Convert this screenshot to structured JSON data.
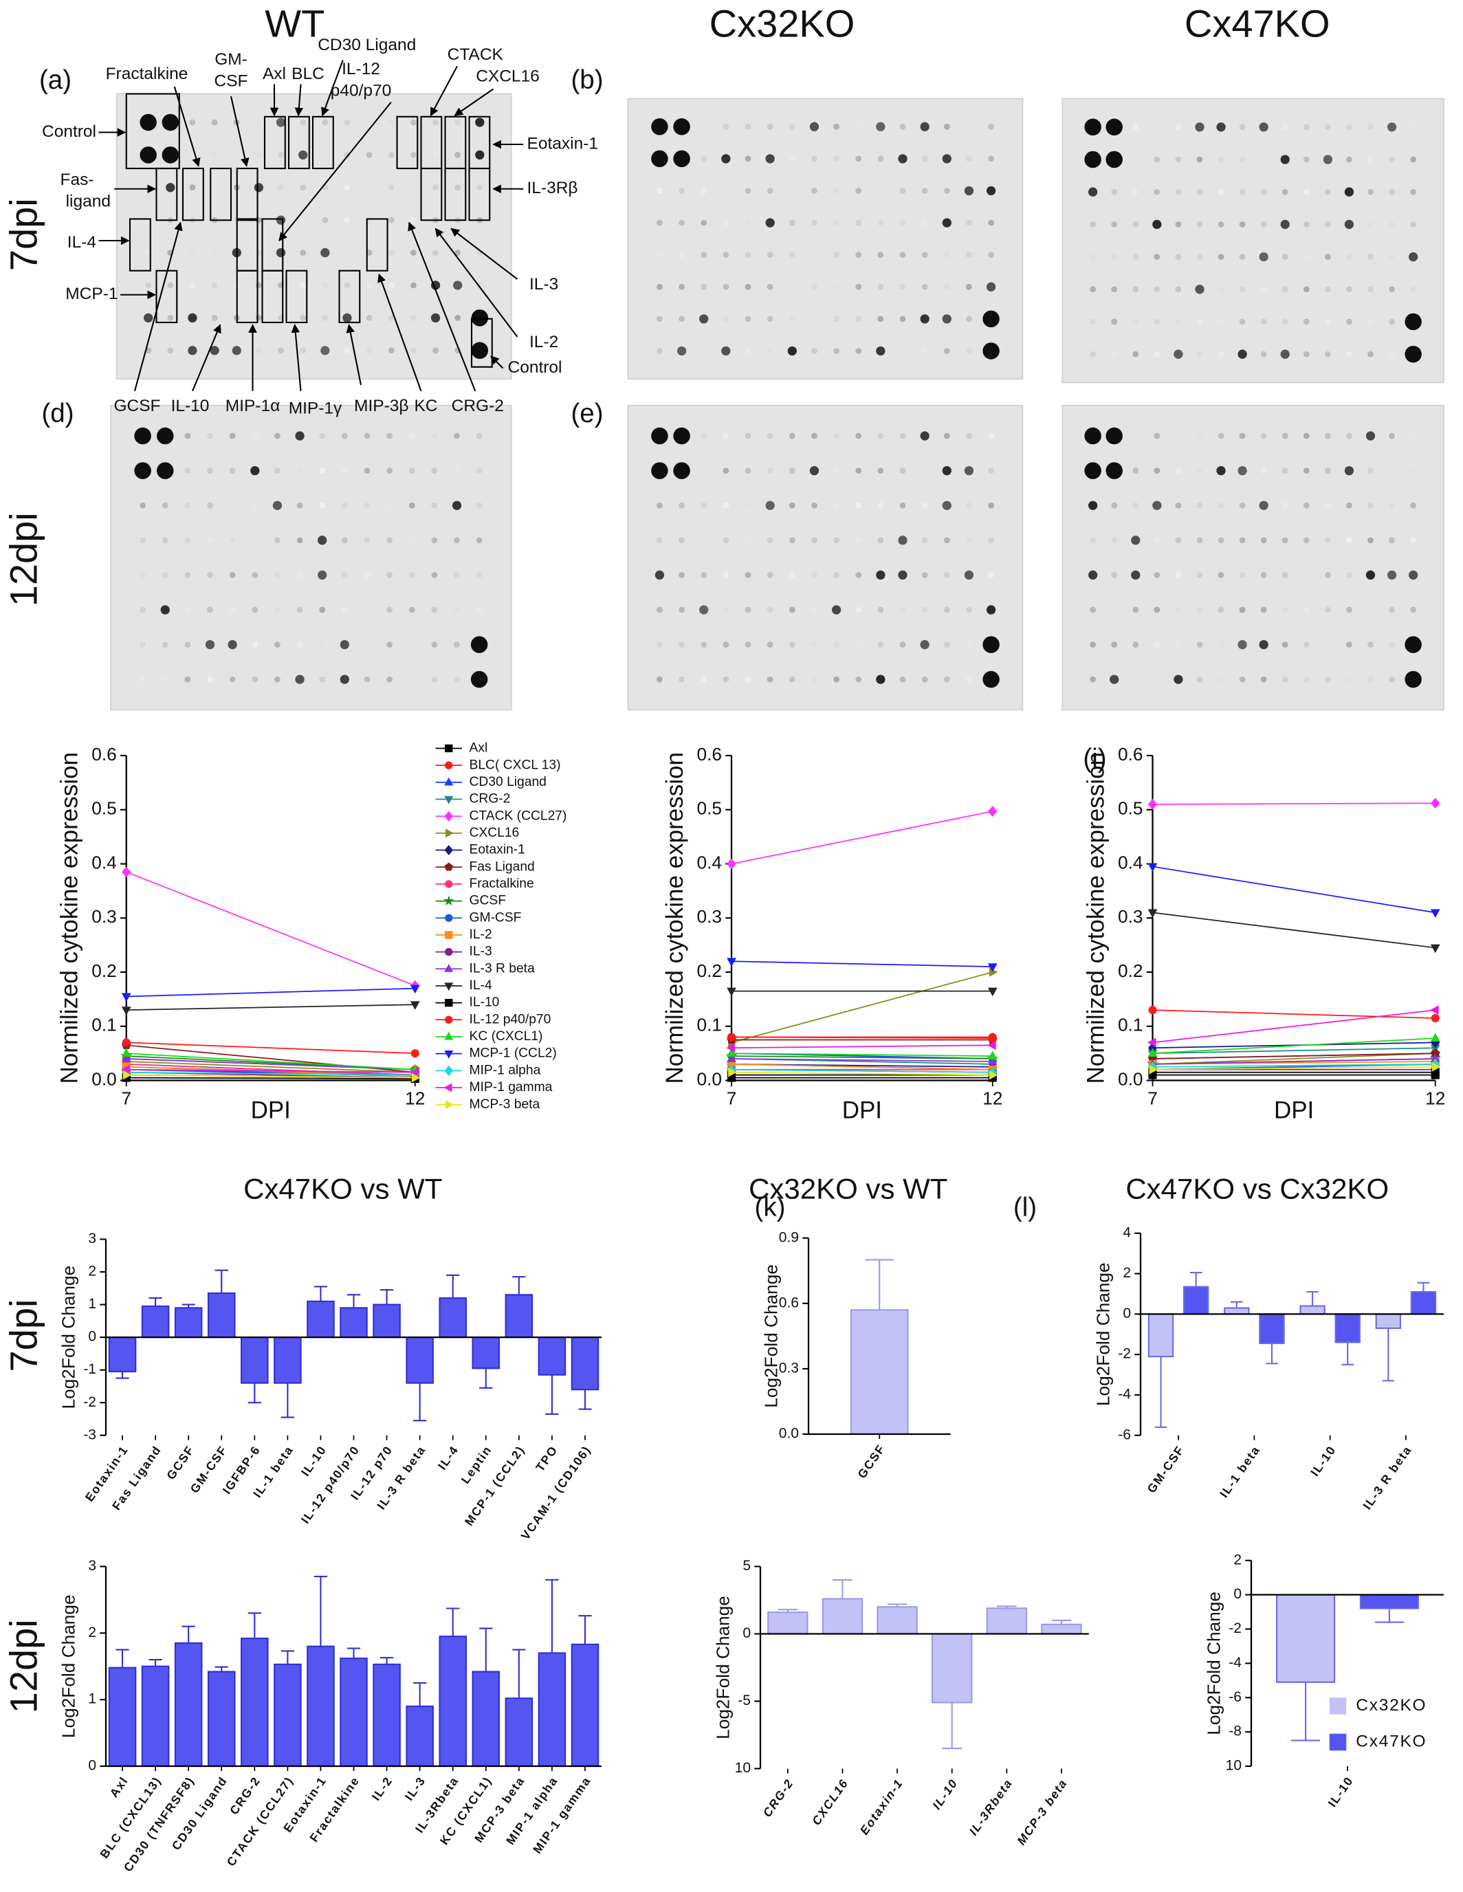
{
  "figure": {
    "column_titles": [
      "WT",
      "Cx32KO",
      "Cx47KO"
    ],
    "row_labels": [
      "7dpi",
      "12dpi"
    ],
    "panel_labels": [
      "(a)",
      "(b)",
      "(d)",
      "(e)",
      "(i)",
      "(k)",
      "(l)"
    ],
    "blot_annotations": [
      "Fractalkine",
      "GM-",
      "CSF",
      "Axl",
      "BLC",
      "CD30 Ligand",
      "IL-12",
      "p40/p70",
      "CTACK",
      "CXCL16",
      "Control",
      "Eotaxin-1",
      "Fas-",
      "ligand",
      "IL-3Rβ",
      "IL-4",
      "IL-3",
      "MCP-1",
      "IL-2",
      "Control",
      "GCSF",
      "IL-10",
      "MIP-1α",
      "MIP-1γ",
      "MIP-3β",
      "KC",
      "CRG-2"
    ],
    "comparison_titles": [
      "Cx47KO vs WT",
      "Cx32KO vs WT",
      "Cx47KO vs Cx32KO"
    ],
    "comparison_row_labels": [
      "7dpi",
      "12dpi"
    ]
  },
  "chart_data": [
    {
      "type": "line",
      "x": [
        7,
        12
      ],
      "xlim": [
        7,
        12
      ],
      "xticks": [
        7,
        12
      ],
      "ylim": [
        0,
        0.6
      ],
      "yticks": [
        {
          "value": 0,
          "label": "0.0"
        },
        0.1,
        0.2,
        0.3,
        0.4,
        0.5,
        0.6
      ],
      "xlabel": "DPI",
      "ylabel": "Normilized cytokine expression",
      "legend": "right",
      "series": [
        {
          "name": "Axl",
          "color": "#000000",
          "marker": "square",
          "values": [
            0.005,
            0.003
          ]
        },
        {
          "name": "BLC( CXCL 13)",
          "color": "#ff1a1a",
          "marker": "circle",
          "values": [
            0.04,
            0.02
          ]
        },
        {
          "name": "CD30 Ligand",
          "color": "#1a3cff",
          "marker": "triangle-up",
          "values": [
            0.03,
            0.01
          ]
        },
        {
          "name": "CRG-2",
          "color": "#1a8c8c",
          "marker": "triangle-down",
          "values": [
            0.025,
            0.01
          ]
        },
        {
          "name": "CTACK (CCL27)",
          "color": "#ff33ff",
          "marker": "diamond",
          "values": [
            0.385,
            0.175
          ]
        },
        {
          "name": "CXCL16",
          "color": "#8c8c1a",
          "marker": "triangle-right",
          "values": [
            0.035,
            0.015
          ]
        },
        {
          "name": "Eotaxin-1",
          "color": "#1a1a8c",
          "marker": "diamond",
          "values": [
            0.02,
            0.008
          ]
        },
        {
          "name": "Fas Ligand",
          "color": "#8c1a1a",
          "marker": "pentagon",
          "values": [
            0.065,
            0.015
          ]
        },
        {
          "name": "Fractalkine",
          "color": "#ff3380",
          "marker": "circle",
          "values": [
            0.03,
            0.01
          ]
        },
        {
          "name": "GCSF",
          "color": "#1a8c1a",
          "marker": "star",
          "values": [
            0.045,
            0.02
          ]
        },
        {
          "name": "GM-CSF",
          "color": "#1a5cd9",
          "marker": "circle",
          "values": [
            0.02,
            0.01
          ]
        },
        {
          "name": "IL-2",
          "color": "#ff8c1a",
          "marker": "square",
          "values": [
            0.025,
            0.008
          ]
        },
        {
          "name": "IL-3",
          "color": "#8c1a8c",
          "marker": "circle",
          "values": [
            0.015,
            0.005
          ]
        },
        {
          "name": "IL-3 R beta",
          "color": "#8c33d9",
          "marker": "triangle-up",
          "values": [
            0.04,
            0.02
          ]
        },
        {
          "name": "IL-4",
          "color": "#262626",
          "marker": "triangle-down",
          "values": [
            0.13,
            0.14
          ]
        },
        {
          "name": "IL-10",
          "color": "#000000",
          "marker": "square",
          "values": [
            0.01,
            0.005
          ]
        },
        {
          "name": "IL-12 p40/p70",
          "color": "#ff1a1a",
          "marker": "circle",
          "values": [
            0.07,
            0.05
          ]
        },
        {
          "name": "KC (CXCL1)",
          "color": "#1ad91a",
          "marker": "triangle-up",
          "values": [
            0.05,
            0.02
          ]
        },
        {
          "name": "MCP-1 (CCL2)",
          "color": "#1a1aff",
          "marker": "triangle-down",
          "values": [
            0.155,
            0.17
          ]
        },
        {
          "name": "MIP-1 alpha",
          "color": "#1ad9d9",
          "marker": "diamond",
          "values": [
            0.015,
            0.01
          ]
        },
        {
          "name": "MIP-1 gamma",
          "color": "#e61ae6",
          "marker": "triangle-left",
          "values": [
            0.02,
            0.015
          ]
        },
        {
          "name": "MCP-3 beta",
          "color": "#e6e61a",
          "marker": "triangle-right",
          "values": [
            0.01,
            0.005
          ]
        }
      ]
    },
    {
      "type": "line",
      "x": [
        7,
        12
      ],
      "xlim": [
        7,
        12
      ],
      "xticks": [
        7,
        12
      ],
      "ylim": [
        0,
        0.6
      ],
      "yticks": [
        {
          "value": 0,
          "label": "0.0"
        },
        0.1,
        0.2,
        0.3,
        0.4,
        0.5,
        0.6
      ],
      "xlabel": "DPI",
      "ylabel": "Normilized cytokine expression",
      "series": [
        {
          "values": [
            0.005,
            0.005
          ]
        },
        {
          "values": [
            0.08,
            0.08
          ]
        },
        {
          "values": [
            0.05,
            0.04
          ]
        },
        {
          "values": [
            0.04,
            0.03
          ]
        },
        {
          "values": [
            0.4,
            0.497
          ]
        },
        {
          "values": [
            0.07,
            0.2
          ]
        },
        {
          "values": [
            0.03,
            0.025
          ]
        },
        {
          "values": [
            0.075,
            0.075
          ]
        },
        {
          "values": [
            0.02,
            0.02
          ]
        },
        {
          "values": [
            0.045,
            0.04
          ]
        },
        {
          "values": [
            0.03,
            0.02
          ]
        },
        {
          "values": [
            0.03,
            0.02
          ]
        },
        {
          "values": [
            0.02,
            0.015
          ]
        },
        {
          "values": [
            0.04,
            0.035
          ]
        },
        {
          "values": [
            0.165,
            0.165
          ]
        },
        {
          "values": [
            0.01,
            0.01
          ]
        },
        {
          "values": [
            0.08,
            0.078
          ]
        },
        {
          "values": [
            0.05,
            0.045
          ]
        },
        {
          "values": [
            0.22,
            0.21
          ]
        },
        {
          "values": [
            0.02,
            0.015
          ]
        },
        {
          "values": [
            0.06,
            0.065
          ]
        },
        {
          "values": [
            0.015,
            0.01
          ]
        }
      ]
    },
    {
      "type": "line",
      "x": [
        7,
        12
      ],
      "xlim": [
        7,
        12
      ],
      "xticks": [
        7,
        12
      ],
      "ylim": [
        0,
        0.6
      ],
      "yticks": [
        {
          "value": 0,
          "label": "0.0"
        },
        0.1,
        0.2,
        0.3,
        0.4,
        0.5,
        0.6
      ],
      "xlabel": "DPI",
      "ylabel": "Normilized cytokine expression",
      "series": [
        {
          "values": [
            0.01,
            0.01
          ]
        },
        {
          "values": [
            0.03,
            0.04
          ]
        },
        {
          "values": [
            0.04,
            0.05
          ]
        },
        {
          "values": [
            0.05,
            0.06
          ]
        },
        {
          "values": [
            0.51,
            0.512
          ]
        },
        {
          "values": [
            0.03,
            0.05
          ]
        },
        {
          "values": [
            0.06,
            0.07
          ]
        },
        {
          "values": [
            0.04,
            0.05
          ]
        },
        {
          "values": [
            0.02,
            0.03
          ]
        },
        {
          "values": [
            0.03,
            0.04
          ]
        },
        {
          "values": [
            0.02,
            0.03
          ]
        },
        {
          "values": [
            0.03,
            0.035
          ]
        },
        {
          "values": [
            0.02,
            0.02
          ]
        },
        {
          "values": [
            0.03,
            0.04
          ]
        },
        {
          "values": [
            0.31,
            0.245
          ]
        },
        {
          "values": [
            0.015,
            0.015
          ]
        },
        {
          "values": [
            0.13,
            0.115
          ]
        },
        {
          "values": [
            0.05,
            0.078
          ]
        },
        {
          "values": [
            0.395,
            0.31
          ]
        },
        {
          "values": [
            0.025,
            0.03
          ]
        },
        {
          "values": [
            0.07,
            0.13
          ]
        },
        {
          "values": [
            0.02,
            0.025
          ]
        }
      ]
    },
    {
      "type": "bar",
      "ylabel": "Log2Fold Change",
      "color": "#5555f2",
      "categories": [
        "Eotaxin-1",
        "Fas Ligand",
        "GCSF",
        "GM-CSF",
        "IGFBP-6",
        "IL-1 beta",
        "IL-10",
        "IL-12 p40/p70",
        "IL-12 p70",
        "IL-3 R beta",
        "IL-4",
        "Leptin",
        "MCP-1 (CCL2)",
        "TPO",
        "VCAM-1 (CD106)"
      ],
      "values": [
        -1.05,
        0.95,
        0.9,
        1.35,
        -1.4,
        -1.4,
        1.1,
        0.9,
        1.0,
        -1.4,
        1.2,
        -0.95,
        1.3,
        -1.15,
        -1.6
      ],
      "errors": [
        0.2,
        0.25,
        0.1,
        0.7,
        0.6,
        1.05,
        0.45,
        0.4,
        0.45,
        1.15,
        0.7,
        0.6,
        0.55,
        1.2,
        0.6
      ],
      "ylim": [
        -3,
        3
      ],
      "yticks": [
        -3,
        -2,
        -1,
        0,
        1,
        2,
        3
      ]
    },
    {
      "type": "bar",
      "ylabel": "Log2Fold Change",
      "color": "#5555f2",
      "categories": [
        "Axl",
        "BLC (CXCL13)",
        "CD30 (TNFRSF8)",
        "CD30 Ligand",
        "CRG-2",
        "CTACK (CCL27)",
        "Eotaxin-1",
        "Fractalkine",
        "IL-2",
        "IL-3",
        "IL-3Rbeta",
        "KC (CXCL1)",
        "MCP-3 beta",
        "MIP-1 alpha",
        "MIP-1 gamma"
      ],
      "values": [
        1.48,
        1.5,
        1.85,
        1.42,
        1.92,
        1.53,
        1.8,
        1.62,
        1.53,
        0.9,
        1.95,
        1.42,
        1.02,
        1.7,
        1.83
      ],
      "errors": [
        0.27,
        0.1,
        0.25,
        0.07,
        0.38,
        0.2,
        1.05,
        0.15,
        0.1,
        0.35,
        0.42,
        0.65,
        0.73,
        1.1,
        0.43
      ],
      "ylim": [
        0,
        3
      ],
      "yticks": [
        0,
        1,
        2,
        3
      ]
    },
    {
      "type": "bar",
      "ylabel": "Log2Fold Change",
      "color": "#c2c2f7",
      "categories": [
        "GCSF"
      ],
      "values": [
        0.57
      ],
      "errors": [
        0.23
      ],
      "ylim": [
        0,
        0.9
      ],
      "yticks": [
        {
          "value": 0,
          "label": "0.0"
        },
        0.3,
        0.6,
        0.9
      ]
    },
    {
      "type": "bar",
      "ylabel": "Log2Fold Change",
      "color": "#c2c2f7",
      "categories": [
        "CRG-2",
        "CXCL16",
        "Eotaxin-1",
        "IL-10",
        "IL-3Rbeta",
        "MCP-3 beta"
      ],
      "values": [
        1.6,
        2.6,
        2.0,
        -5.1,
        1.9,
        0.7
      ],
      "errors": [
        0.2,
        1.4,
        0.2,
        3.4,
        0.15,
        0.3
      ],
      "ylim": [
        -10,
        5
      ],
      "yticks": [
        {
          "value": -10,
          "label": "10"
        },
        -5,
        0,
        5
      ]
    },
    {
      "type": "grouped_bar",
      "ylabel": "Log2Fold Change",
      "categories": [
        "GM-CSF",
        "IL-1 beta",
        "IL-10",
        "IL-3 R beta"
      ],
      "series": [
        {
          "color": "#c2c2f7",
          "values": [
            -2.1,
            0.3,
            0.4,
            -0.7
          ],
          "errors": [
            3.5,
            0.3,
            0.7,
            2.6
          ]
        },
        {
          "color": "#5555f2",
          "values": [
            1.35,
            -1.45,
            -1.4,
            1.1
          ],
          "errors": [
            0.7,
            1.0,
            1.1,
            0.45
          ]
        }
      ],
      "ylim": [
        -6,
        4
      ],
      "yticks": [
        -6,
        -4,
        -2,
        0,
        2,
        4
      ]
    },
    {
      "type": "grouped_bar",
      "ylabel": "Log2Fold Change",
      "legend": "lower right",
      "categories": [
        "IL-10"
      ],
      "series": [
        {
          "name": "Cx32KO",
          "color": "#c2c2f7",
          "values": [
            -5.1
          ],
          "errors": [
            3.4
          ]
        },
        {
          "name": "Cx47KO",
          "color": "#5555f2",
          "values": [
            -0.8
          ],
          "errors": [
            0.8
          ]
        }
      ],
      "ylim": [
        -10,
        2
      ],
      "yticks": [
        {
          "value": -10,
          "label": "10"
        },
        -8,
        -6,
        -4,
        -2,
        0,
        2
      ]
    }
  ]
}
